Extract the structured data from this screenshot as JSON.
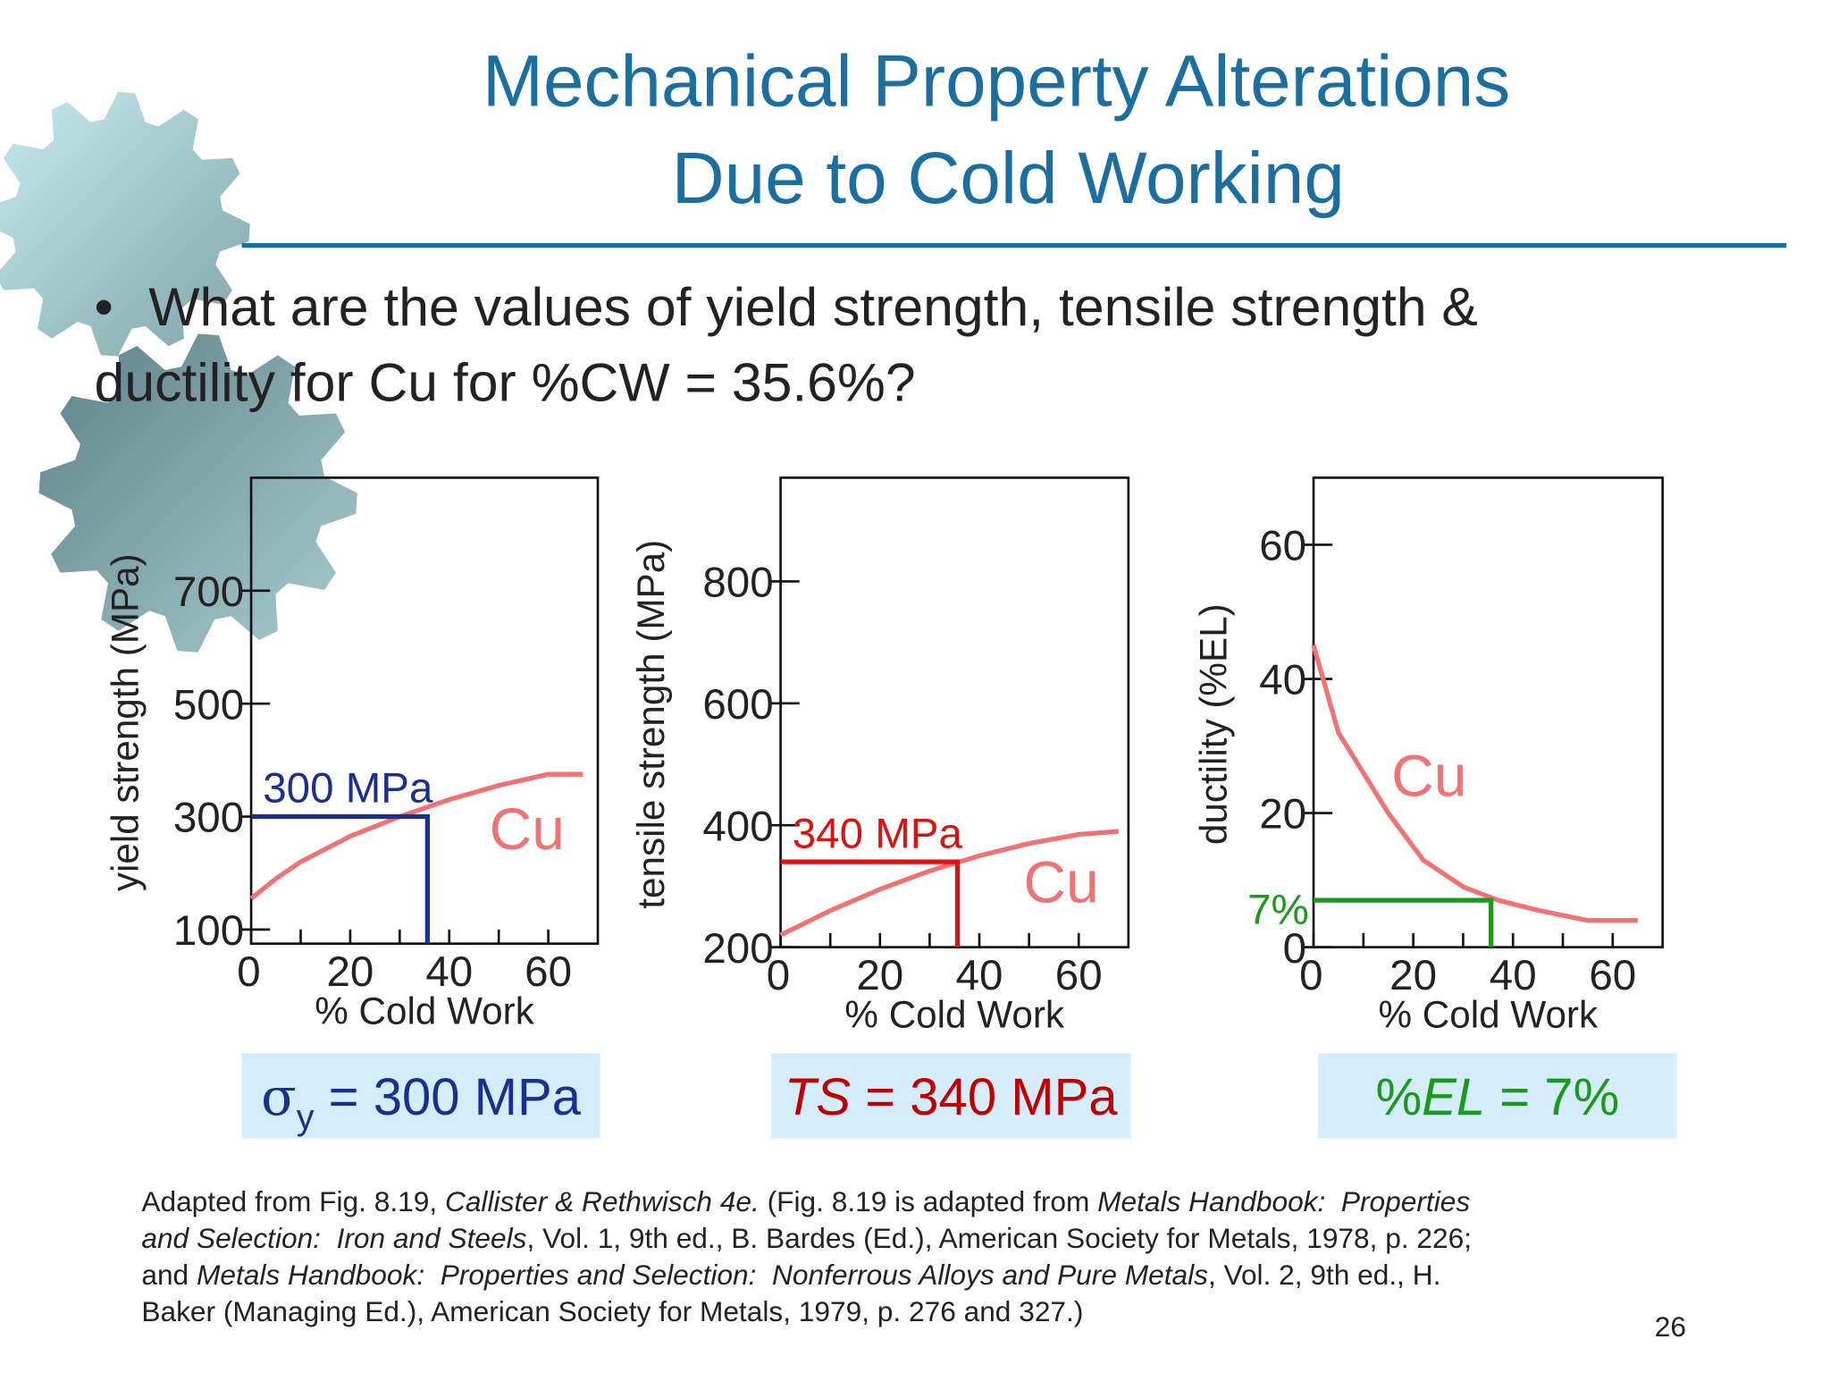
{
  "title": [
    "Mechanical Property Alterations",
    "Due to Cold Working"
  ],
  "bullet": [
    "What are the values of yield strength, tensile strength &",
    "ductility for Cu for %CW = 35.6%?"
  ],
  "chart_data": [
    {
      "type": "line",
      "ylabel": "yield strength (MPa)",
      "xlabel": "% Cold Work",
      "xlim": [
        0,
        70
      ],
      "xticks": [
        0,
        20,
        40,
        60
      ],
      "ylim": [
        75,
        900
      ],
      "yticks": [
        100,
        300,
        500,
        700
      ],
      "series": [
        {
          "name": "Cu",
          "color": "#f07272",
          "x": [
            0,
            5,
            10,
            20,
            30,
            40,
            50,
            60,
            67
          ],
          "values": [
            155,
            190,
            220,
            265,
            300,
            330,
            355,
            375,
            375
          ]
        }
      ],
      "reference": {
        "x": 35.6,
        "y": 300,
        "label": "300 MPa",
        "color": "#1a2f8f"
      }
    },
    {
      "type": "line",
      "ylabel": "tensile strength (MPa)",
      "xlabel": "% Cold Work",
      "xlim": [
        0,
        70
      ],
      "xticks": [
        0,
        20,
        40,
        60
      ],
      "ylim": [
        200,
        970
      ],
      "yticks": [
        200,
        400,
        600,
        800
      ],
      "series": [
        {
          "name": "Cu",
          "color": "#f07272",
          "x": [
            0,
            10,
            20,
            30,
            40,
            50,
            60,
            68
          ],
          "values": [
            220,
            260,
            295,
            325,
            350,
            370,
            385,
            390
          ]
        }
      ],
      "reference": {
        "x": 35.6,
        "y": 340,
        "label": "340 MPa",
        "color": "#e01010"
      }
    },
    {
      "type": "line",
      "ylabel": "ductility (%EL)",
      "xlabel": "% Cold Work",
      "xlim": [
        0,
        70
      ],
      "xticks": [
        0,
        20,
        40,
        60
      ],
      "ylim": [
        0,
        70
      ],
      "yticks": [
        0,
        20,
        40,
        60
      ],
      "series": [
        {
          "name": "Cu",
          "color": "#f07272",
          "x": [
            0,
            5,
            15,
            22,
            30,
            37,
            45,
            55,
            65
          ],
          "values": [
            45,
            32,
            20,
            13,
            9,
            7,
            5.5,
            4,
            4
          ]
        }
      ],
      "reference": {
        "x": 35.6,
        "y": 7,
        "label": "7%",
        "color": "#1a9a1a"
      }
    }
  ],
  "results": [
    {
      "symbol": "σ",
      "subscript": "y",
      "text": " = 300 MPa",
      "color": "#1a2f8f"
    },
    {
      "symbol": "TS",
      "text": " = 340 MPa",
      "color": "#c00000"
    },
    {
      "prefix": "%",
      "symbol": "EL",
      "text": " = 7%",
      "color": "#1a9a1a"
    }
  ],
  "caption": [
    [
      {
        "text": "Adapted from Fig. 8.19, ",
        "italic": false
      },
      {
        "text": "Callister & Rethwisch 4e.",
        "italic": true
      },
      {
        "text": " (Fig. 8.19 is adapted from ",
        "italic": false
      },
      {
        "text": "Metals Handbook:  Properties",
        "italic": true
      }
    ],
    [
      {
        "text": "and Selection:  Iron and Steels",
        "italic": true
      },
      {
        "text": ", Vol. 1, 9th ed., B. Bardes (Ed.), American Society for Metals, 1978, p. 226;",
        "italic": false
      }
    ],
    [
      {
        "text": "and ",
        "italic": false
      },
      {
        "text": "Metals Handbook:  Properties and Selection:  Nonferrous Alloys and Pure Metals",
        "italic": true
      },
      {
        "text": ", Vol. 2, 9th ed., H.",
        "italic": false
      }
    ],
    [
      {
        "text": "Baker (Managing Ed.), American Society for Metals, 1979, p. 276 and 327.)",
        "italic": false
      }
    ]
  ],
  "page_number": "26"
}
